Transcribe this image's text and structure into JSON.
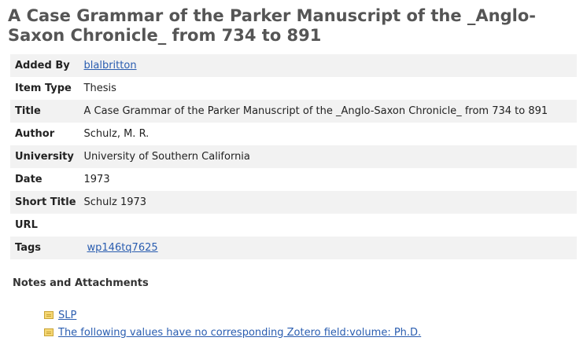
{
  "item": {
    "title": "A Case Grammar of the Parker Manuscript of the _Anglo-Saxon Chronicle_ from 734 to 891"
  },
  "fields": [
    {
      "label": "Added By",
      "value": "blalbritton",
      "link": true
    },
    {
      "label": "Item Type",
      "value": "Thesis",
      "link": false
    },
    {
      "label": "Title",
      "value": "A Case Grammar of the Parker Manuscript of the _Anglo-Saxon Chronicle_ from 734 to 891",
      "link": false
    },
    {
      "label": "Author",
      "value": "Schulz, M. R.",
      "link": false
    },
    {
      "label": "University",
      "value": "University of Southern California",
      "link": false
    },
    {
      "label": "Date",
      "value": "1973",
      "link": false
    },
    {
      "label": "Short Title",
      "value": "Schulz 1973",
      "link": false
    },
    {
      "label": "URL",
      "value": "",
      "link": false
    },
    {
      "label": "Tags",
      "value": "wp146tq7625",
      "link": true
    }
  ],
  "notes": {
    "heading": "Notes and Attachments",
    "items": [
      {
        "label": "SLP",
        "icon": "note-icon"
      },
      {
        "label": "The following values have no corresponding Zotero field:volume: Ph.D.",
        "icon": "note-icon"
      }
    ]
  }
}
